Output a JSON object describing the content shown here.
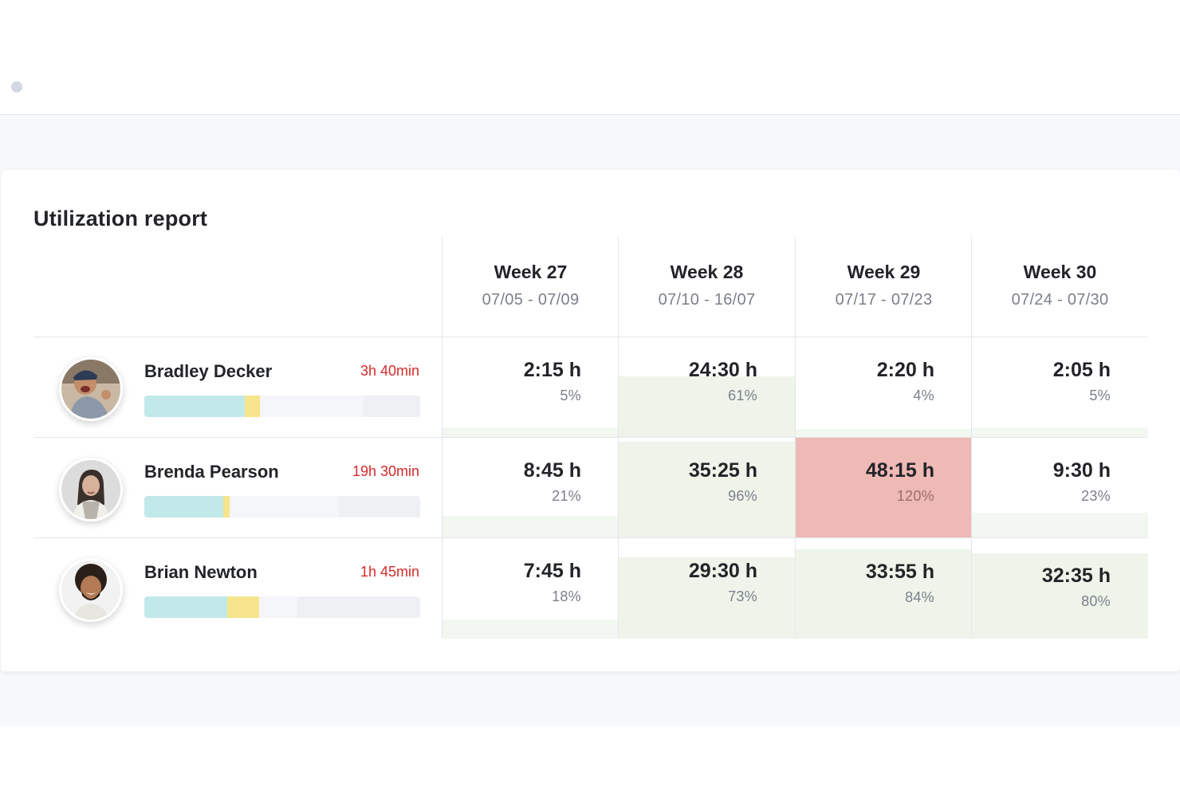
{
  "report": {
    "title": "Utilization report"
  },
  "weeks": [
    {
      "name": "Week 27",
      "range": "07/05 - 07/09"
    },
    {
      "name": "Week 28",
      "range": "07/10 - 16/07"
    },
    {
      "name": "Week 29",
      "range": "07/17 - 07/23"
    },
    {
      "name": "Week 30",
      "range": "07/24 - 07/30"
    }
  ],
  "people": [
    {
      "name": "Bradley Decker",
      "overtime": "3h 40min",
      "bar": {
        "booked_fraction": 0.364,
        "overtime_fraction": 0.055,
        "unavailable_fraction": 0.205
      },
      "cells": [
        {
          "hours": "2:15 h",
          "percent": "5%",
          "fill_level": 0.1,
          "status": "normal"
        },
        {
          "hours": "24:30 h",
          "percent": "61%",
          "fill_level": 0.61,
          "status": "normal"
        },
        {
          "hours": "2:20 h",
          "percent": "4%",
          "fill_level": 0.09,
          "status": "normal"
        },
        {
          "hours": "2:05 h",
          "percent": "5%",
          "fill_level": 0.1,
          "status": "normal"
        }
      ]
    },
    {
      "name": "Brenda Pearson",
      "overtime": "19h 30min",
      "bar": {
        "booked_fraction": 0.285,
        "overtime_fraction": 0.023,
        "unavailable_fraction": 0.295
      },
      "cells": [
        {
          "hours": "8:45 h",
          "percent": "21%",
          "fill_level": 0.22,
          "status": "normal"
        },
        {
          "hours": "35:25 h",
          "percent": "96%",
          "fill_level": 0.96,
          "status": "normal"
        },
        {
          "hours": "48:15 h",
          "percent": "120%",
          "fill_level": 1.0,
          "status": "over"
        },
        {
          "hours": "9:30 h",
          "percent": "23%",
          "fill_level": 0.25,
          "status": "normal"
        }
      ]
    },
    {
      "name": "Brian Newton",
      "overtime": "1h 45min",
      "bar": {
        "booked_fraction": 0.3,
        "overtime_fraction": 0.115,
        "unavailable_fraction": 0.445
      },
      "cells": [
        {
          "hours": "7:45 h",
          "percent": "18%",
          "fill_level": 0.19,
          "status": "normal"
        },
        {
          "hours": "29:30 h",
          "percent": "73%",
          "fill_level": 0.81,
          "status": "normal"
        },
        {
          "hours": "33:55 h",
          "percent": "84%",
          "fill_level": 0.89,
          "status": "normal"
        },
        {
          "hours": "32:35 h",
          "percent": "80%",
          "fill_level": 0.85,
          "status": "normal"
        }
      ]
    }
  ],
  "colors": {
    "fill_normal": "#eef4ea",
    "fill_light": "#f3f7f1",
    "fill_over": "#efb9b5",
    "overtime_text": "#d42a2a",
    "bar_booked": "#c1e9ea",
    "bar_overtime": "#f6e58d",
    "bar_unavailable": "#eef0f4"
  }
}
